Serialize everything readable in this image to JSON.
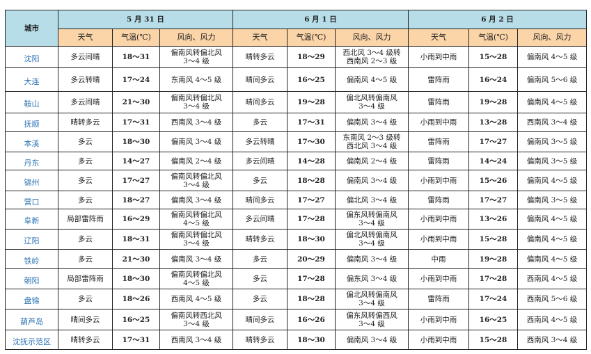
{
  "header": {
    "city_label": "城市",
    "dates": [
      "5 月 31 日",
      "6 月 1 日",
      "6 月 2 日"
    ],
    "sub": [
      "天气",
      "气温(℃)",
      "风向、风力"
    ]
  },
  "colors": {
    "header_blue": "#b7dde8",
    "header_orange": "#fbd4a8",
    "city_text": "#2e74b5"
  },
  "rows": [
    {
      "city": "沈阳",
      "d": [
        [
          "多云间晴",
          "18～31",
          "偏南风转偏北风\n3～4 级"
        ],
        [
          "晴转多云",
          "18～29",
          "西北风 3～4 级转\n西南风 2～3 级"
        ],
        [
          "小雨到中雨",
          "15～28",
          "偏南风 4～5 级"
        ]
      ]
    },
    {
      "city": "大连",
      "d": [
        [
          "多云转晴",
          "17～24",
          "东南风 4～5 级"
        ],
        [
          "晴间多云",
          "16～25",
          "偏南风 4～5 级"
        ],
        [
          "雷阵雨",
          "16～24",
          "偏南风 5～6 级"
        ]
      ]
    },
    {
      "city": "鞍山",
      "d": [
        [
          "多云间晴",
          "21～30",
          "偏南风转偏北风\n3～4 级"
        ],
        [
          "晴间多云",
          "19～28",
          "偏北风转偏南风\n3～4 级"
        ],
        [
          "雷阵雨",
          "19～28",
          "偏南风 4～5 级"
        ]
      ]
    },
    {
      "city": "抚顺",
      "d": [
        [
          "晴转多云",
          "17～31",
          "西南风 3～4 级"
        ],
        [
          "多云",
          "17～31",
          "偏南风 3～4 级"
        ],
        [
          "小雨到中雨",
          "13～28",
          "西南风 3～4 级"
        ]
      ]
    },
    {
      "city": "本溪",
      "d": [
        [
          "多云",
          "18～30",
          "偏南风 3～4 级"
        ],
        [
          "多云转晴",
          "17～30",
          "东南风 2～3 级转\n西北风 3～4 级"
        ],
        [
          "雷阵雨",
          "17～27",
          "偏南风 3～5 级"
        ]
      ]
    },
    {
      "city": "丹东",
      "d": [
        [
          "多云",
          "14～27",
          "偏南风 2～4 级"
        ],
        [
          "多云间晴",
          "14～28",
          "偏南风 2～4 级"
        ],
        [
          "雷阵雨",
          "14～24",
          "偏南风 3～5 级"
        ]
      ]
    },
    {
      "city": "锦州",
      "d": [
        [
          "多云",
          "17～27",
          "偏南风转偏北风\n3～4 级"
        ],
        [
          "多云",
          "18～28",
          "偏南风 3～4 级"
        ],
        [
          "小雨到中雨",
          "15～26",
          "偏南风 4～5 级"
        ]
      ]
    },
    {
      "city": "营口",
      "d": [
        [
          "多云",
          "18～27",
          "偏南风 3～4 级"
        ],
        [
          "晴间多云",
          "17～27",
          "偏北风 3～4 级"
        ],
        [
          "雷阵雨",
          "17～27",
          "偏南风 3～5 级"
        ]
      ]
    },
    {
      "city": "阜新",
      "d": [
        [
          "局部雷阵雨",
          "16～29",
          "偏南风转偏北风\n4～5 级"
        ],
        [
          "多云间晴",
          "17～28",
          "偏东风转偏南风\n3～4 级"
        ],
        [
          "小雨到中雨",
          "13～26",
          "偏南风 4～5 级"
        ]
      ]
    },
    {
      "city": "辽阳",
      "d": [
        [
          "多云",
          "18～31",
          "偏南风转偏北风\n3～4 级"
        ],
        [
          "晴转多云",
          "18～30",
          "偏北风转偏南风\n3～4 级"
        ],
        [
          "小雨到中雨",
          "15～28",
          "偏南风 4～5 级"
        ]
      ]
    },
    {
      "city": "铁岭",
      "d": [
        [
          "多云",
          "21～30",
          "偏南风 3～4 级"
        ],
        [
          "多云",
          "20～29",
          "偏南风 3～4 级"
        ],
        [
          "中雨",
          "19～28",
          "偏南风 4～5 级"
        ]
      ]
    },
    {
      "city": "朝阳",
      "d": [
        [
          "局部雷阵雨",
          "18～30",
          "偏南风转偏北风\n4～5 级"
        ],
        [
          "多云",
          "17～28",
          "偏东风 3～4 级"
        ],
        [
          "小雨到中雨",
          "17～28",
          "西南风 4～5 级"
        ]
      ]
    },
    {
      "city": "盘锦",
      "d": [
        [
          "多云",
          "18～26",
          "西南风 4～5 级"
        ],
        [
          "多云",
          "18～28",
          "偏北风转偏南风\n3～4 级"
        ],
        [
          "雷阵雨",
          "17～24",
          "西南风 5～6 级"
        ]
      ]
    },
    {
      "city": "葫芦岛",
      "d": [
        [
          "晴间多云",
          "16～25",
          "偏南风转西北风\n3～4 级"
        ],
        [
          "晴间多云",
          "16～26",
          "偏东风转偏西风\n3～4 级"
        ],
        [
          "小雨到中雨",
          "16～25",
          "西南风 4～5 级"
        ]
      ]
    },
    {
      "city": "沈抚示范区",
      "d": [
        [
          "晴转多云",
          "17～31",
          "西南风 3～4 级"
        ],
        [
          "晴转多云",
          "18～30",
          "偏南风 3～4 级"
        ],
        [
          "小雨到中雨",
          "15～28",
          "西南风 3～4 级"
        ]
      ]
    }
  ]
}
